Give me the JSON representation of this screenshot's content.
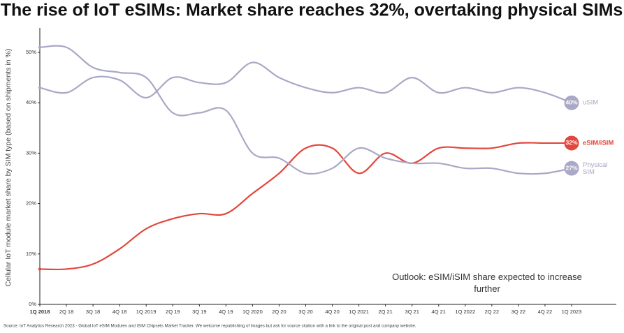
{
  "chart_data": {
    "type": "line",
    "title": "The rise of IoT eSIMs: Market share reaches 32%, overtaking physical SIMs",
    "y_label": "Cellular IoT module market share by SIM type (based on shipments in %)",
    "annotation": "Outlook: eSIM/iSIM share expected to increase further",
    "source": "Source: IoT Analytics Research 2023 - Global IoT eSIM Modules and iSIM Chipsets Market Tracker. We welcome republishing of images but ask for source citation with a link to the original post and company website.",
    "categories": [
      "1Q 2018",
      "2Q 18",
      "3Q 18",
      "4Q 18",
      "1Q 2019",
      "2Q 19",
      "3Q 19",
      "4Q 19",
      "1Q 2020",
      "2Q 20",
      "3Q 20",
      "4Q 20",
      "1Q 2021",
      "2Q 21",
      "3Q 21",
      "4Q 21",
      "1Q 2022",
      "2Q 22",
      "3Q 22",
      "4Q 22",
      "1Q 2023"
    ],
    "series": [
      {
        "name": "uSIM",
        "color": "#a9a8c6",
        "values": [
          43,
          42,
          45,
          44.5,
          41,
          45,
          44,
          44,
          48,
          45,
          43,
          42,
          43,
          42,
          45,
          42,
          43,
          42,
          43,
          42,
          40
        ],
        "value_labels": [
          null,
          null,
          null,
          null,
          null,
          null,
          null,
          null,
          null,
          null,
          null,
          null,
          null,
          null,
          null,
          null,
          null,
          null,
          null,
          null,
          "40%"
        ]
      },
      {
        "name": "eSIM/iSIM",
        "color": "#e3463c",
        "values": [
          7,
          7,
          8,
          11,
          15,
          17,
          18,
          18,
          22,
          26,
          31,
          31,
          26,
          30,
          28,
          31,
          31,
          31,
          32,
          32,
          32
        ],
        "value_labels": [
          null,
          null,
          null,
          null,
          null,
          null,
          null,
          null,
          null,
          null,
          null,
          null,
          null,
          null,
          null,
          null,
          null,
          null,
          null,
          null,
          "32%"
        ]
      },
      {
        "name": "Physical SIM",
        "color": "#a9a8c6",
        "values": [
          51,
          51,
          47,
          46,
          45,
          38,
          38,
          38.5,
          30,
          29,
          26,
          27,
          31,
          29,
          28,
          28,
          27,
          27,
          26,
          26,
          27
        ],
        "value_labels": [
          null,
          null,
          null,
          null,
          null,
          null,
          null,
          null,
          null,
          null,
          null,
          null,
          null,
          null,
          null,
          null,
          null,
          null,
          null,
          null,
          "27%"
        ]
      }
    ],
    "ylim": [
      0,
      50
    ],
    "yticks": [
      {
        "value": 0,
        "label": "0%"
      },
      {
        "value": 10,
        "label": "10%"
      },
      {
        "value": 20,
        "label": "20%"
      },
      {
        "value": 30,
        "label": "30%"
      },
      {
        "value": 40,
        "label": "40%"
      },
      {
        "value": 50,
        "label": "50%"
      }
    ],
    "grid": false
  }
}
